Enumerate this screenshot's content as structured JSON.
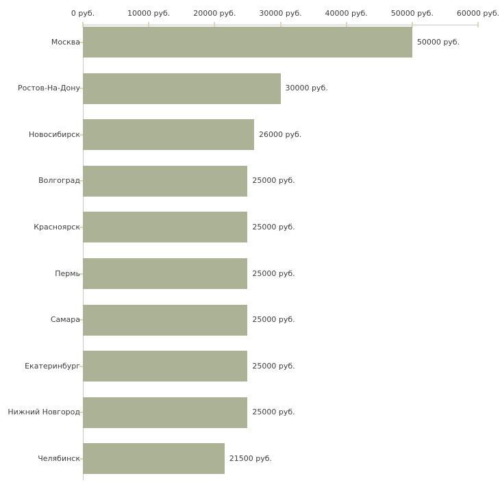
{
  "chart_data": {
    "type": "bar",
    "orientation": "horizontal",
    "title": "",
    "xlabel": "",
    "ylabel": "",
    "categories": [
      "Москва",
      "Ростов-На-Дону",
      "Новосибирск",
      "Волгоград",
      "Красноярск",
      "Пермь",
      "Самара",
      "Екатеринбург",
      "Нижний Новгород",
      "Челябинск"
    ],
    "values": [
      50000,
      30000,
      26000,
      25000,
      25000,
      25000,
      25000,
      25000,
      25000,
      21500
    ],
    "value_labels": [
      "50000 руб.",
      "30000 руб.",
      "26000 руб.",
      "25000 руб.",
      "25000 руб.",
      "25000 руб.",
      "25000 руб.",
      "25000 руб.",
      "25000 руб.",
      "21500 руб."
    ],
    "x_axis": {
      "ticks": [
        0,
        10000,
        20000,
        30000,
        40000,
        50000,
        60000
      ],
      "tick_labels": [
        "0 руб.",
        "10000 руб.",
        "20000 руб.",
        "30000 руб.",
        "40000 руб.",
        "50000 руб.",
        "60000 руб."
      ],
      "xlim": [
        0,
        60000
      ],
      "position": "top"
    },
    "legend": null,
    "grid": false,
    "colors": {
      "bar_fill": "#abb296",
      "axis_line": "#c6c6c6",
      "tick_mark": "#d9d9b6",
      "text": "#3d3d3d",
      "background": "#ffffff"
    }
  }
}
